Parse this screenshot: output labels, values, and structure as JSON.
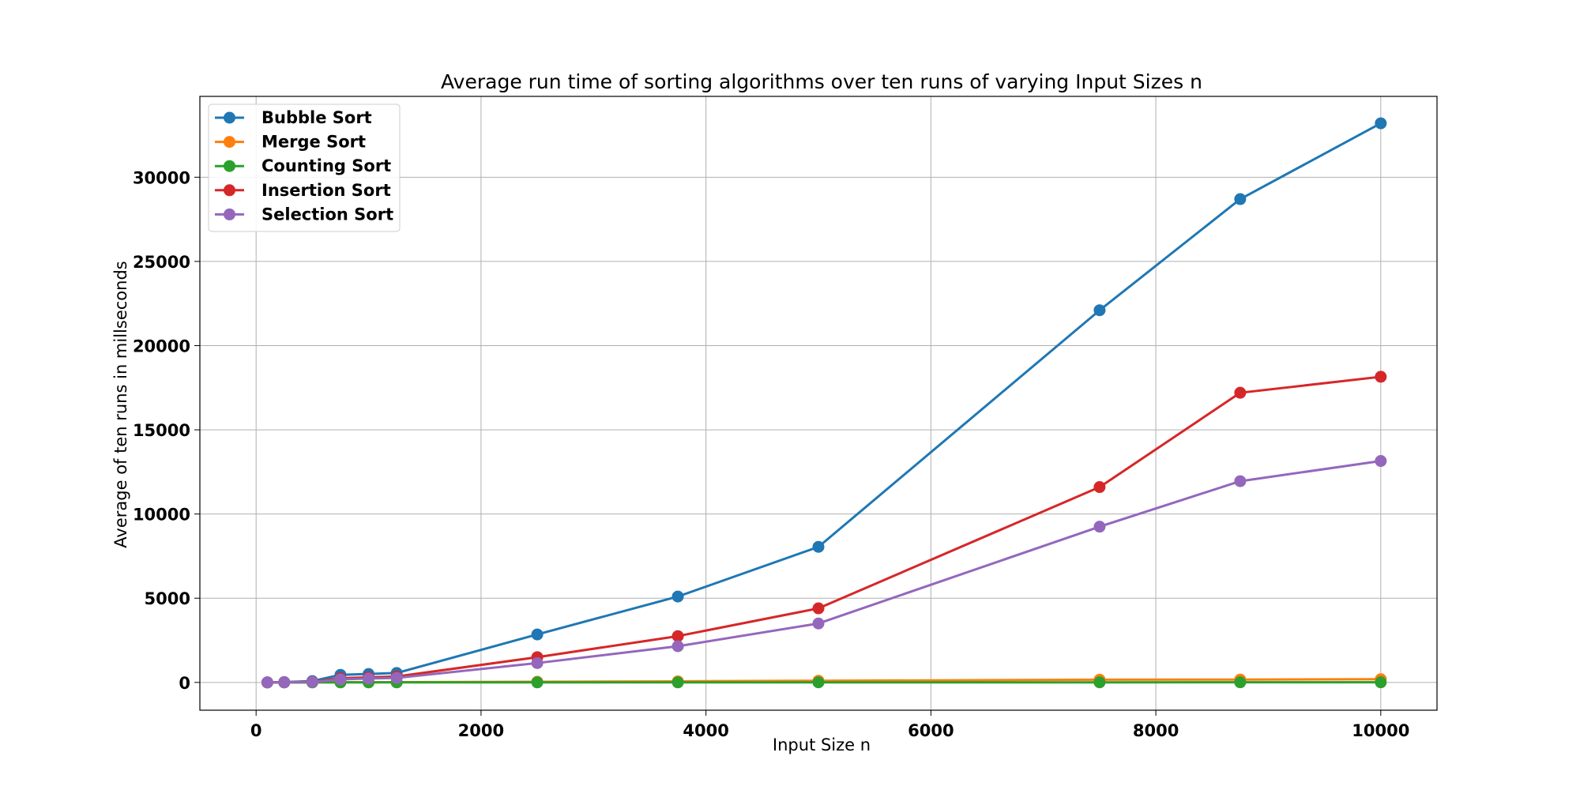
{
  "chart_data": {
    "type": "line",
    "title": "Average run time of sorting algorithms over ten runs of varying Input Sizes n",
    "xlabel": "Input Size n",
    "ylabel": "Average of ten runs in millseconds",
    "xlim": [
      -500,
      10500
    ],
    "ylim": [
      -1650,
      34800
    ],
    "xticks": [
      0,
      2000,
      4000,
      6000,
      8000,
      10000
    ],
    "xtick_labels": [
      "0",
      "2000",
      "4000",
      "6000",
      "8000",
      "10000"
    ],
    "yticks": [
      0,
      5000,
      10000,
      15000,
      20000,
      25000,
      30000
    ],
    "ytick_labels": [
      "0",
      "5000",
      "10000",
      "15000",
      "20000",
      "25000",
      "30000"
    ],
    "grid": true,
    "legend_position": "top-left",
    "x": [
      100,
      250,
      500,
      750,
      1000,
      1250,
      2500,
      3750,
      5000,
      7500,
      8750,
      10000
    ],
    "series": [
      {
        "name": "Bubble Sort",
        "color": "#1f77b4",
        "values": [
          3,
          20,
          80,
          450,
          500,
          560,
          2850,
          5100,
          8050,
          22100,
          28700,
          33200
        ]
      },
      {
        "name": "Merge Sort",
        "color": "#ff7f0e",
        "values": [
          0,
          2,
          5,
          8,
          10,
          13,
          40,
          65,
          100,
          160,
          170,
          190
        ]
      },
      {
        "name": "Counting Sort",
        "color": "#2ca02c",
        "values": [
          0,
          0,
          1,
          1,
          1,
          1,
          2,
          3,
          4,
          6,
          7,
          8
        ]
      },
      {
        "name": "Insertion Sort",
        "color": "#d62728",
        "values": [
          2,
          10,
          40,
          250,
          300,
          350,
          1500,
          2750,
          4400,
          11600,
          17200,
          18150
        ]
      },
      {
        "name": "Selection Sort",
        "color": "#9467bd",
        "values": [
          2,
          8,
          30,
          180,
          230,
          270,
          1150,
          2150,
          3500,
          9250,
          11950,
          13150
        ]
      }
    ]
  }
}
